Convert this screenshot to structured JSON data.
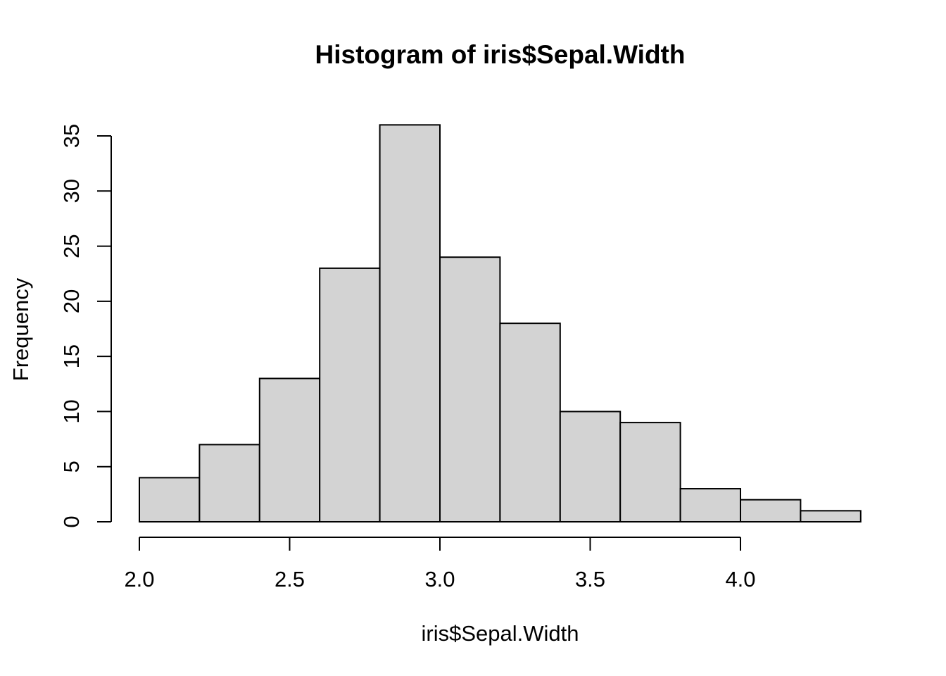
{
  "chart_data": {
    "type": "bar",
    "subtype": "histogram",
    "title": "Histogram of iris$Sepal.Width",
    "xlabel": "iris$Sepal.Width",
    "ylabel": "Frequency",
    "breaks": [
      2.0,
      2.2,
      2.4,
      2.6,
      2.8,
      3.0,
      3.2,
      3.4,
      3.6,
      3.8,
      4.0,
      4.2,
      4.4
    ],
    "counts": [
      4,
      7,
      13,
      23,
      36,
      24,
      18,
      10,
      9,
      3,
      2,
      1
    ],
    "xlim": [
      2.0,
      4.4
    ],
    "ylim": [
      0,
      36
    ],
    "x_tick_values": [
      2.0,
      2.5,
      3.0,
      3.5,
      4.0
    ],
    "x_tick_labels": [
      "2.0",
      "2.5",
      "3.0",
      "3.5",
      "4.0"
    ],
    "y_tick_values": [
      0,
      5,
      10,
      15,
      20,
      25,
      30,
      35
    ],
    "y_tick_labels": [
      "0",
      "5",
      "10",
      "15",
      "20",
      "25",
      "30",
      "35"
    ],
    "grid": false,
    "legend_position": "none",
    "bar_fill": "#d3d3d3",
    "bar_border": "#000000",
    "axis_color": "#000000",
    "text_color": "#000000",
    "background": "#ffffff"
  }
}
